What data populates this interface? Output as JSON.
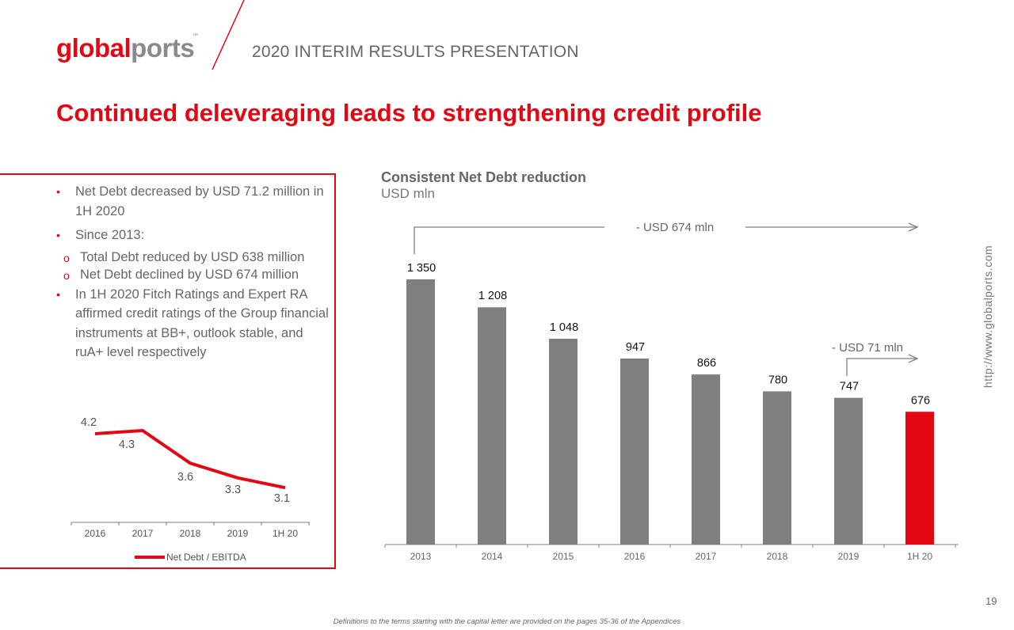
{
  "header": {
    "logo_part1": "global",
    "logo_part2": "ports",
    "logo_tm": "™",
    "title": "2020 INTERIM RESULTS PRESENTATION"
  },
  "slide_title": "Continued deleveraging leads to strengthening credit profile",
  "bullets": {
    "b1": "Net Debt decreased by USD 71.2 million in 1H 2020",
    "b2": "Since 2013:",
    "s1": "Total Debt reduced by USD 638 million",
    "s2": "Net Debt declined by USD 674 million",
    "b3": "In 1H 2020 Fitch Ratings and Expert RA affirmed credit ratings of the Group financial instruments at BB+, outlook stable, and ruA+ level respectively"
  },
  "side_url": "http://www.globalports.com",
  "page_number": "19",
  "footnote": "Definitions to the terms starting with the capital letter are provided on the pages 35-36 of the Appendices",
  "colors": {
    "accent": "#e30613",
    "bar_gray": "#7f7f82",
    "text_gray": "#666666"
  },
  "chart_data": [
    {
      "type": "bar",
      "title": "Consistent Net Debt reduction",
      "subtitle": "USD mln",
      "categories": [
        "2013",
        "2014",
        "2015",
        "2016",
        "2017",
        "2018",
        "2019",
        "1H 20"
      ],
      "values": [
        1350,
        1208,
        1048,
        947,
        866,
        780,
        747,
        676
      ],
      "value_labels": [
        "1 350",
        "1 208",
        "1 048",
        "947",
        "866",
        "780",
        "747",
        "676"
      ],
      "highlight_index": 7,
      "ylim": [
        0,
        1350
      ],
      "annotations": [
        "- USD 674 mln",
        "- USD 71 mln"
      ]
    },
    {
      "type": "line",
      "categories": [
        "2016",
        "2017",
        "2018",
        "2019",
        "1H 20"
      ],
      "series": [
        {
          "name": "Net Debt / EBITDA",
          "values": [
            4.2,
            4.3,
            3.6,
            3.3,
            3.1
          ]
        }
      ],
      "value_labels": [
        "4.2",
        "4.3",
        "3.6",
        "3.3",
        "3.1"
      ],
      "legend": "bottom"
    }
  ]
}
